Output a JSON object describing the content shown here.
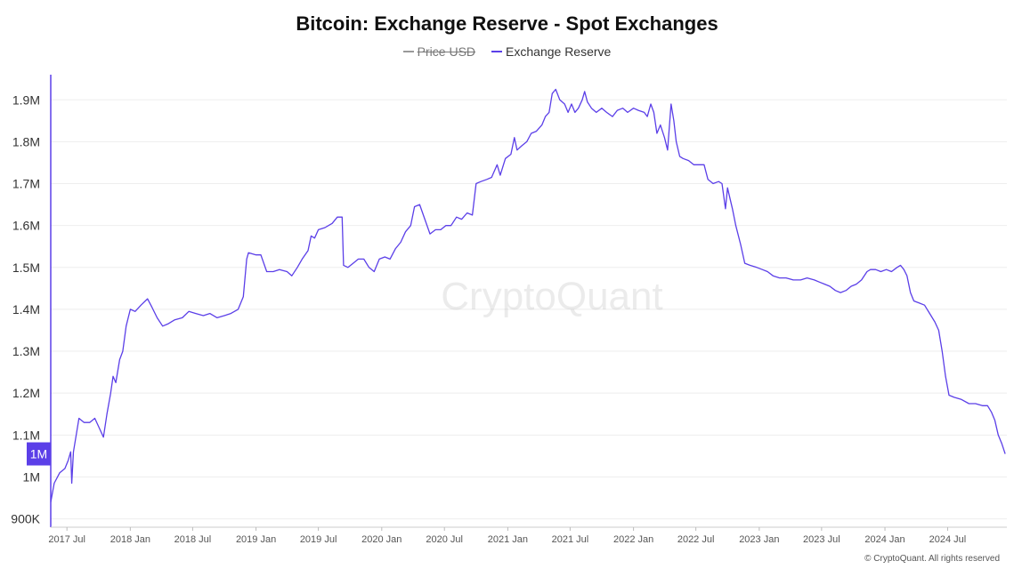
{
  "chart_data": {
    "type": "line",
    "title": "Bitcoin: Exchange Reserve - Spot Exchanges",
    "legend": [
      {
        "name": "Price USD",
        "color": "#999999",
        "hidden": true
      },
      {
        "name": "Exchange Reserve",
        "color": "#5b3fe8",
        "hidden": false
      }
    ],
    "watermark": "CryptoQuant",
    "copyright": "© CryptoQuant. All rights reserved",
    "current_value_label": "1M",
    "y_ticks": [
      {
        "value": 900000,
        "label": "900K"
      },
      {
        "value": 1000000,
        "label": "1M"
      },
      {
        "value": 1100000,
        "label": "1.1M"
      },
      {
        "value": 1200000,
        "label": "1.2M"
      },
      {
        "value": 1300000,
        "label": "1.3M"
      },
      {
        "value": 1400000,
        "label": "1.4M"
      },
      {
        "value": 1500000,
        "label": "1.5M"
      },
      {
        "value": 1600000,
        "label": "1.6M"
      },
      {
        "value": 1700000,
        "label": "1.7M"
      },
      {
        "value": 1800000,
        "label": "1.8M"
      },
      {
        "value": 1900000,
        "label": "1.9M"
      }
    ],
    "x_ticks": [
      {
        "date": "2017-07-01",
        "label": "2017 Jul"
      },
      {
        "date": "2018-01-01",
        "label": "2018 Jan"
      },
      {
        "date": "2018-07-01",
        "label": "2018 Jul"
      },
      {
        "date": "2019-01-01",
        "label": "2019 Jan"
      },
      {
        "date": "2019-07-01",
        "label": "2019 Jul"
      },
      {
        "date": "2020-01-01",
        "label": "2020 Jan"
      },
      {
        "date": "2020-07-01",
        "label": "2020 Jul"
      },
      {
        "date": "2021-01-01",
        "label": "2021 Jan"
      },
      {
        "date": "2021-07-01",
        "label": "2021 Jul"
      },
      {
        "date": "2022-01-01",
        "label": "2022 Jan"
      },
      {
        "date": "2022-07-01",
        "label": "2022 Jul"
      },
      {
        "date": "2023-01-01",
        "label": "2023 Jan"
      },
      {
        "date": "2023-07-01",
        "label": "2023 Jul"
      },
      {
        "date": "2024-01-01",
        "label": "2024 Jan"
      },
      {
        "date": "2024-07-01",
        "label": "2024 Jul"
      }
    ],
    "ylim": [
      880000,
      1960000
    ],
    "xlim": [
      "2017-05-15",
      "2024-12-20"
    ],
    "grid": true,
    "legend_position": "top-center",
    "series": [
      {
        "name": "Exchange Reserve",
        "color": "#5b3fe8",
        "points": [
          [
            "2017-05-15",
            940000
          ],
          [
            "2017-05-25",
            985000
          ],
          [
            "2017-06-10",
            1010000
          ],
          [
            "2017-06-25",
            1020000
          ],
          [
            "2017-07-05",
            1040000
          ],
          [
            "2017-07-12",
            1060000
          ],
          [
            "2017-07-15",
            985000
          ],
          [
            "2017-07-20",
            1060000
          ],
          [
            "2017-07-28",
            1100000
          ],
          [
            "2017-08-05",
            1140000
          ],
          [
            "2017-08-20",
            1130000
          ],
          [
            "2017-09-05",
            1130000
          ],
          [
            "2017-09-20",
            1140000
          ],
          [
            "2017-10-01",
            1120000
          ],
          [
            "2017-10-15",
            1095000
          ],
          [
            "2017-10-25",
            1150000
          ],
          [
            "2017-11-05",
            1200000
          ],
          [
            "2017-11-12",
            1240000
          ],
          [
            "2017-11-20",
            1225000
          ],
          [
            "2017-12-01",
            1280000
          ],
          [
            "2017-12-10",
            1300000
          ],
          [
            "2017-12-20",
            1360000
          ],
          [
            "2018-01-01",
            1400000
          ],
          [
            "2018-01-15",
            1395000
          ],
          [
            "2018-02-01",
            1410000
          ],
          [
            "2018-02-20",
            1425000
          ],
          [
            "2018-03-05",
            1405000
          ],
          [
            "2018-03-20",
            1380000
          ],
          [
            "2018-04-05",
            1360000
          ],
          [
            "2018-04-20",
            1365000
          ],
          [
            "2018-05-10",
            1375000
          ],
          [
            "2018-06-01",
            1380000
          ],
          [
            "2018-06-20",
            1395000
          ],
          [
            "2018-07-10",
            1390000
          ],
          [
            "2018-08-01",
            1385000
          ],
          [
            "2018-08-20",
            1390000
          ],
          [
            "2018-09-10",
            1380000
          ],
          [
            "2018-10-01",
            1385000
          ],
          [
            "2018-10-20",
            1390000
          ],
          [
            "2018-11-10",
            1400000
          ],
          [
            "2018-11-25",
            1430000
          ],
          [
            "2018-12-05",
            1520000
          ],
          [
            "2018-12-10",
            1535000
          ],
          [
            "2019-01-01",
            1530000
          ],
          [
            "2019-01-15",
            1530000
          ],
          [
            "2019-02-01",
            1490000
          ],
          [
            "2019-02-20",
            1490000
          ],
          [
            "2019-03-10",
            1495000
          ],
          [
            "2019-04-01",
            1490000
          ],
          [
            "2019-04-15",
            1480000
          ],
          [
            "2019-05-01",
            1500000
          ],
          [
            "2019-05-15",
            1520000
          ],
          [
            "2019-06-01",
            1540000
          ],
          [
            "2019-06-10",
            1575000
          ],
          [
            "2019-06-20",
            1570000
          ],
          [
            "2019-07-01",
            1590000
          ],
          [
            "2019-07-20",
            1595000
          ],
          [
            "2019-08-10",
            1605000
          ],
          [
            "2019-08-25",
            1620000
          ],
          [
            "2019-09-08",
            1620000
          ],
          [
            "2019-09-12",
            1505000
          ],
          [
            "2019-09-25",
            1500000
          ],
          [
            "2019-10-10",
            1510000
          ],
          [
            "2019-10-25",
            1520000
          ],
          [
            "2019-11-10",
            1520000
          ],
          [
            "2019-11-25",
            1500000
          ],
          [
            "2019-12-10",
            1490000
          ],
          [
            "2019-12-25",
            1520000
          ],
          [
            "2020-01-10",
            1525000
          ],
          [
            "2020-01-25",
            1520000
          ],
          [
            "2020-02-10",
            1545000
          ],
          [
            "2020-02-25",
            1560000
          ],
          [
            "2020-03-10",
            1585000
          ],
          [
            "2020-03-25",
            1600000
          ],
          [
            "2020-04-05",
            1645000
          ],
          [
            "2020-04-20",
            1650000
          ],
          [
            "2020-05-05",
            1615000
          ],
          [
            "2020-05-20",
            1580000
          ],
          [
            "2020-06-05",
            1590000
          ],
          [
            "2020-06-20",
            1590000
          ],
          [
            "2020-07-05",
            1600000
          ],
          [
            "2020-07-20",
            1600000
          ],
          [
            "2020-08-05",
            1620000
          ],
          [
            "2020-08-20",
            1615000
          ],
          [
            "2020-09-05",
            1630000
          ],
          [
            "2020-09-20",
            1625000
          ],
          [
            "2020-10-01",
            1700000
          ],
          [
            "2020-10-15",
            1705000
          ],
          [
            "2020-11-01",
            1710000
          ],
          [
            "2020-11-15",
            1715000
          ],
          [
            "2020-12-01",
            1745000
          ],
          [
            "2020-12-10",
            1720000
          ],
          [
            "2020-12-25",
            1760000
          ],
          [
            "2021-01-10",
            1770000
          ],
          [
            "2021-01-20",
            1810000
          ],
          [
            "2021-01-28",
            1780000
          ],
          [
            "2021-02-10",
            1790000
          ],
          [
            "2021-02-25",
            1800000
          ],
          [
            "2021-03-10",
            1820000
          ],
          [
            "2021-03-25",
            1825000
          ],
          [
            "2021-04-10",
            1840000
          ],
          [
            "2021-04-20",
            1860000
          ],
          [
            "2021-05-01",
            1870000
          ],
          [
            "2021-05-10",
            1915000
          ],
          [
            "2021-05-20",
            1925000
          ],
          [
            "2021-06-01",
            1900000
          ],
          [
            "2021-06-15",
            1890000
          ],
          [
            "2021-06-25",
            1870000
          ],
          [
            "2021-07-05",
            1890000
          ],
          [
            "2021-07-15",
            1870000
          ],
          [
            "2021-07-25",
            1880000
          ],
          [
            "2021-08-05",
            1900000
          ],
          [
            "2021-08-12",
            1920000
          ],
          [
            "2021-08-20",
            1895000
          ],
          [
            "2021-09-01",
            1880000
          ],
          [
            "2021-09-15",
            1870000
          ],
          [
            "2021-10-01",
            1880000
          ],
          [
            "2021-10-15",
            1870000
          ],
          [
            "2021-11-01",
            1860000
          ],
          [
            "2021-11-15",
            1875000
          ],
          [
            "2021-12-01",
            1880000
          ],
          [
            "2021-12-15",
            1870000
          ],
          [
            "2022-01-01",
            1880000
          ],
          [
            "2022-01-15",
            1875000
          ],
          [
            "2022-02-01",
            1870000
          ],
          [
            "2022-02-10",
            1860000
          ],
          [
            "2022-02-20",
            1890000
          ],
          [
            "2022-03-01",
            1870000
          ],
          [
            "2022-03-10",
            1820000
          ],
          [
            "2022-03-20",
            1840000
          ],
          [
            "2022-04-01",
            1810000
          ],
          [
            "2022-04-10",
            1780000
          ],
          [
            "2022-04-20",
            1890000
          ],
          [
            "2022-04-28",
            1850000
          ],
          [
            "2022-05-05",
            1800000
          ],
          [
            "2022-05-15",
            1765000
          ],
          [
            "2022-05-25",
            1760000
          ],
          [
            "2022-06-10",
            1755000
          ],
          [
            "2022-06-25",
            1745000
          ],
          [
            "2022-07-10",
            1745000
          ],
          [
            "2022-07-25",
            1745000
          ],
          [
            "2022-08-05",
            1710000
          ],
          [
            "2022-08-20",
            1700000
          ],
          [
            "2022-09-05",
            1705000
          ],
          [
            "2022-09-15",
            1700000
          ],
          [
            "2022-09-25",
            1640000
          ],
          [
            "2022-10-01",
            1690000
          ],
          [
            "2022-10-15",
            1640000
          ],
          [
            "2022-10-25",
            1600000
          ],
          [
            "2022-11-08",
            1555000
          ],
          [
            "2022-11-20",
            1510000
          ],
          [
            "2022-12-05",
            1505000
          ],
          [
            "2022-12-25",
            1500000
          ],
          [
            "2023-01-10",
            1495000
          ],
          [
            "2023-01-25",
            1490000
          ],
          [
            "2023-02-10",
            1480000
          ],
          [
            "2023-03-01",
            1475000
          ],
          [
            "2023-03-20",
            1475000
          ],
          [
            "2023-04-10",
            1470000
          ],
          [
            "2023-05-01",
            1470000
          ],
          [
            "2023-05-20",
            1475000
          ],
          [
            "2023-06-10",
            1470000
          ],
          [
            "2023-06-25",
            1465000
          ],
          [
            "2023-07-10",
            1460000
          ],
          [
            "2023-07-25",
            1455000
          ],
          [
            "2023-08-10",
            1445000
          ],
          [
            "2023-08-25",
            1440000
          ],
          [
            "2023-09-10",
            1445000
          ],
          [
            "2023-09-25",
            1455000
          ],
          [
            "2023-10-10",
            1460000
          ],
          [
            "2023-10-25",
            1470000
          ],
          [
            "2023-11-10",
            1490000
          ],
          [
            "2023-11-20",
            1495000
          ],
          [
            "2023-12-05",
            1495000
          ],
          [
            "2023-12-20",
            1490000
          ],
          [
            "2024-01-05",
            1495000
          ],
          [
            "2024-01-20",
            1490000
          ],
          [
            "2024-02-05",
            1500000
          ],
          [
            "2024-02-15",
            1505000
          ],
          [
            "2024-02-25",
            1495000
          ],
          [
            "2024-03-05",
            1480000
          ],
          [
            "2024-03-15",
            1440000
          ],
          [
            "2024-03-25",
            1420000
          ],
          [
            "2024-04-10",
            1415000
          ],
          [
            "2024-04-25",
            1410000
          ],
          [
            "2024-05-10",
            1390000
          ],
          [
            "2024-05-25",
            1370000
          ],
          [
            "2024-06-05",
            1350000
          ],
          [
            "2024-06-15",
            1300000
          ],
          [
            "2024-06-25",
            1240000
          ],
          [
            "2024-07-05",
            1195000
          ],
          [
            "2024-07-20",
            1190000
          ],
          [
            "2024-08-10",
            1185000
          ],
          [
            "2024-09-01",
            1175000
          ],
          [
            "2024-09-20",
            1175000
          ],
          [
            "2024-10-10",
            1170000
          ],
          [
            "2024-10-25",
            1170000
          ],
          [
            "2024-11-05",
            1155000
          ],
          [
            "2024-11-15",
            1135000
          ],
          [
            "2024-11-25",
            1100000
          ],
          [
            "2024-12-05",
            1080000
          ],
          [
            "2024-12-15",
            1055000
          ]
        ]
      }
    ]
  }
}
